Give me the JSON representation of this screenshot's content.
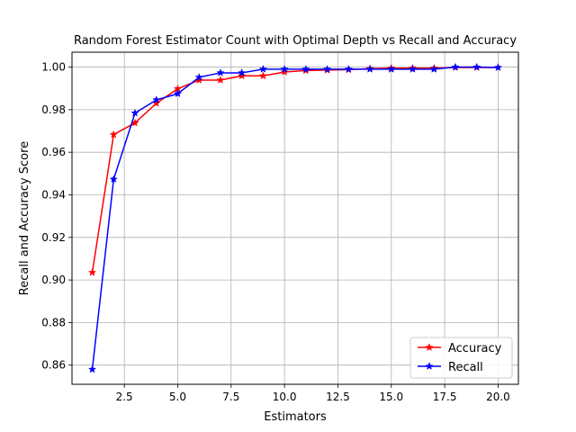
{
  "chart_data": {
    "type": "line",
    "title": "Random Forest Estimator Count with Optimal Depth vs Recall and Accuracy",
    "xlabel": "Estimators",
    "ylabel": "Recall and Accuracy Score",
    "xlim": [
      0.05,
      20.95
    ],
    "ylim": [
      0.851,
      1.007
    ],
    "grid": true,
    "legend_position": "lower-right",
    "x": [
      1,
      2,
      3,
      4,
      5,
      6,
      7,
      8,
      9,
      10,
      11,
      12,
      13,
      14,
      15,
      16,
      17,
      18,
      19,
      20
    ],
    "xticks": [
      2.5,
      5.0,
      7.5,
      10.0,
      12.5,
      15.0,
      17.5,
      20.0
    ],
    "xtick_labels": [
      "2.5",
      "5.0",
      "7.5",
      "10.0",
      "12.5",
      "15.0",
      "17.5",
      "20.0"
    ],
    "yticks": [
      0.86,
      0.88,
      0.9,
      0.92,
      0.94,
      0.96,
      0.98,
      1.0
    ],
    "ytick_labels": [
      "0.86",
      "0.88",
      "0.90",
      "0.92",
      "0.94",
      "0.96",
      "0.98",
      "1.00"
    ],
    "series": [
      {
        "name": "Accuracy",
        "color": "#ff0000",
        "marker": "star",
        "values": [
          0.9035,
          0.9683,
          0.9738,
          0.983,
          0.9898,
          0.9939,
          0.9939,
          0.9959,
          0.9959,
          0.9977,
          0.9984,
          0.9986,
          0.9988,
          0.9993,
          0.9995,
          0.9995,
          0.9995,
          0.9998,
          0.9998,
          0.9998
        ]
      },
      {
        "name": "Recall",
        "color": "#0000ff",
        "marker": "star",
        "values": [
          0.858,
          0.9473,
          0.9784,
          0.9846,
          0.9875,
          0.9952,
          0.9973,
          0.9973,
          0.999,
          0.999,
          0.999,
          0.999,
          0.999,
          0.999,
          0.999,
          0.999,
          0.999,
          1.0,
          1.0,
          0.9998
        ]
      }
    ]
  }
}
